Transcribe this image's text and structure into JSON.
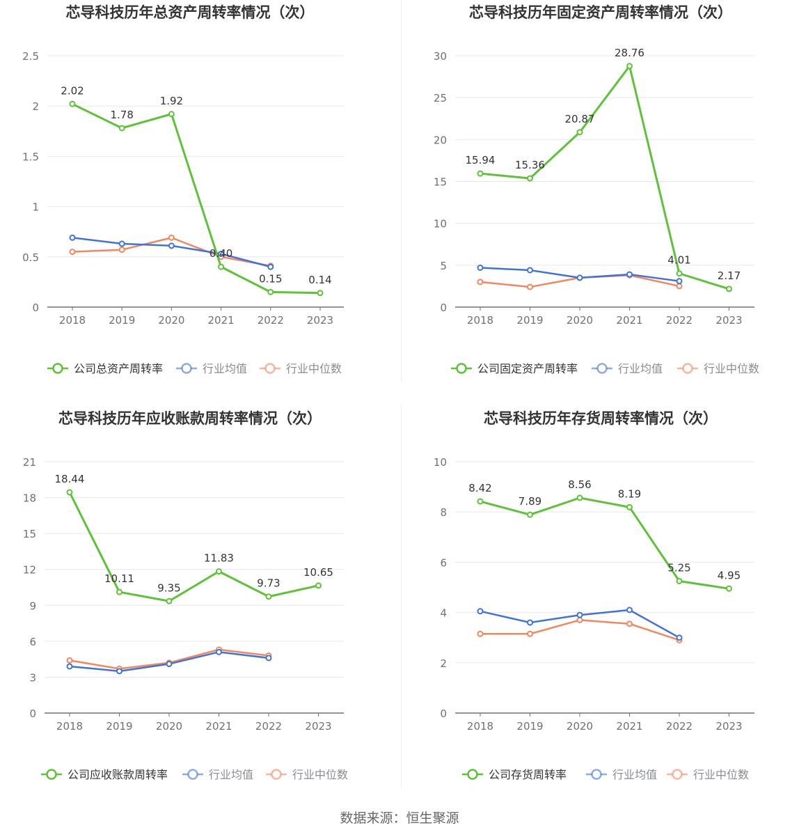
{
  "source": "数据来源：恒生聚源",
  "colors": {
    "company": "#5dc236",
    "average": "#3f73d9",
    "median": "#f2875e"
  },
  "chart_data": [
    {
      "type": "line",
      "title": "芯导科技历年总资产周转率情况（次）",
      "categories": [
        "2018",
        "2019",
        "2020",
        "2021",
        "2022",
        "2023"
      ],
      "ylim": [
        0,
        2.5
      ],
      "yticks": [
        "0",
        "0.5",
        "1",
        "1.5",
        "2",
        "2.5"
      ],
      "grid": true,
      "legend_position": "bottom",
      "series": [
        {
          "name": "公司总资产周转率",
          "values": [
            2.02,
            1.78,
            1.92,
            0.4,
            0.15,
            0.14
          ],
          "labels": [
            "2.02",
            "1.78",
            "1.92",
            "0.40",
            "0.15",
            "0.14"
          ]
        },
        {
          "name": "行业均值",
          "values": [
            0.69,
            0.63,
            0.61,
            0.53,
            0.4,
            null
          ]
        },
        {
          "name": "行业中位数",
          "values": [
            0.55,
            0.57,
            0.69,
            0.5,
            0.41,
            null
          ]
        }
      ]
    },
    {
      "type": "line",
      "title": "芯导科技历年固定资产周转率情况（次）",
      "categories": [
        "2018",
        "2019",
        "2020",
        "2021",
        "2022",
        "2023"
      ],
      "ylim": [
        0,
        30
      ],
      "yticks": [
        "0",
        "5",
        "10",
        "15",
        "20",
        "25",
        "30"
      ],
      "grid": true,
      "legend_position": "bottom",
      "series": [
        {
          "name": "公司固定资产周转率",
          "values": [
            15.94,
            15.36,
            20.87,
            28.76,
            4.01,
            2.17
          ],
          "labels": [
            "15.94",
            "15.36",
            "20.87",
            "28.76",
            "4.01",
            "2.17"
          ]
        },
        {
          "name": "行业均值",
          "values": [
            4.7,
            4.4,
            3.5,
            3.9,
            3.1,
            null
          ]
        },
        {
          "name": "行业中位数",
          "values": [
            3.0,
            2.4,
            3.5,
            3.8,
            2.5,
            null
          ]
        }
      ]
    },
    {
      "type": "line",
      "title": "芯导科技历年应收账款周转率情况（次）",
      "categories": [
        "2018",
        "2019",
        "2020",
        "2021",
        "2022",
        "2023"
      ],
      "ylim": [
        0,
        21
      ],
      "yticks": [
        "0",
        "3",
        "6",
        "9",
        "12",
        "15",
        "18",
        "21"
      ],
      "grid": true,
      "legend_position": "bottom",
      "series": [
        {
          "name": "公司应收账款周转率",
          "values": [
            18.44,
            10.11,
            9.35,
            11.83,
            9.73,
            10.65
          ],
          "labels": [
            "18.44",
            "10.11",
            "9.35",
            "11.83",
            "9.73",
            "10.65"
          ]
        },
        {
          "name": "行业均值",
          "values": [
            3.9,
            3.5,
            4.1,
            5.1,
            4.6,
            null
          ]
        },
        {
          "name": "行业中位数",
          "values": [
            4.4,
            3.7,
            4.2,
            5.3,
            4.8,
            null
          ]
        }
      ]
    },
    {
      "type": "line",
      "title": "芯导科技历年存货周转率情况（次）",
      "categories": [
        "2018",
        "2019",
        "2020",
        "2021",
        "2022",
        "2023"
      ],
      "ylim": [
        0,
        10
      ],
      "yticks": [
        "0",
        "2",
        "4",
        "6",
        "8",
        "10"
      ],
      "grid": true,
      "legend_position": "bottom",
      "series": [
        {
          "name": "公司存货周转率",
          "values": [
            8.42,
            7.89,
            8.56,
            8.19,
            5.25,
            4.95
          ],
          "labels": [
            "8.42",
            "7.89",
            "8.56",
            "8.19",
            "5.25",
            "4.95"
          ]
        },
        {
          "name": "行业均值",
          "values": [
            4.05,
            3.6,
            3.9,
            4.1,
            3.0,
            null
          ]
        },
        {
          "name": "行业中位数",
          "values": [
            3.15,
            3.15,
            3.7,
            3.55,
            2.9,
            null
          ]
        }
      ]
    }
  ]
}
